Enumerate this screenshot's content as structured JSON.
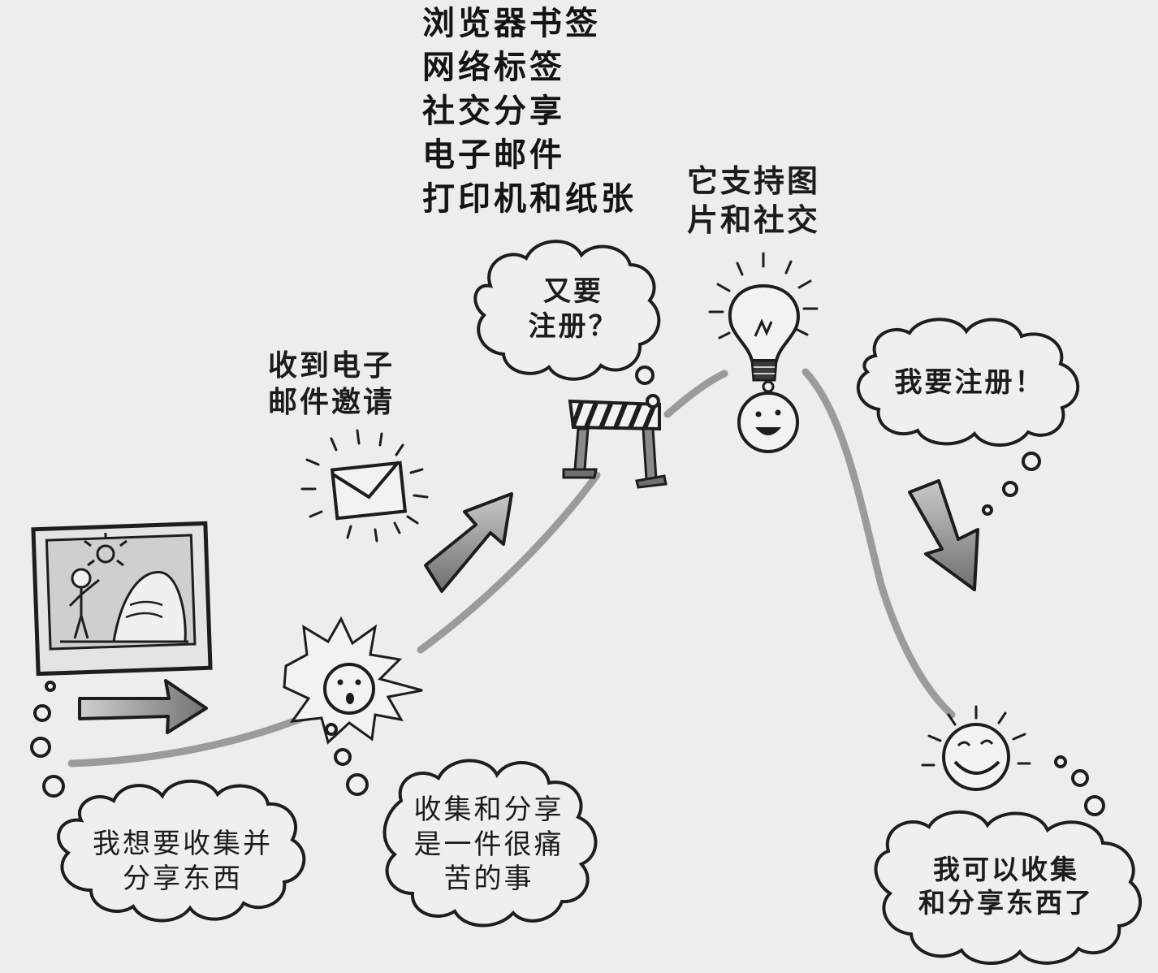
{
  "labels": {
    "channels": [
      "浏览器书签",
      "网络标签",
      "社交分享",
      "电子邮件",
      "打印机和纸张"
    ],
    "email_invite": [
      "收到电子",
      "邮件邀请"
    ],
    "register_again": [
      "又要",
      "注册？"
    ],
    "supports": [
      "它支持图",
      "片和社交"
    ],
    "want_register": "我要注册！",
    "want_collect": [
      "我想要收集并",
      "分享东西"
    ],
    "painful": [
      "收集和分享",
      "是一件很痛",
      "苦的事"
    ],
    "can_collect": [
      "我可以收集",
      "和分享东西了"
    ]
  },
  "colors": {
    "ink": "#1d1d1d",
    "cloud_fill": "#efefed",
    "path_gray": "#9b9b98",
    "arrow_gray": "#8a8a87"
  }
}
